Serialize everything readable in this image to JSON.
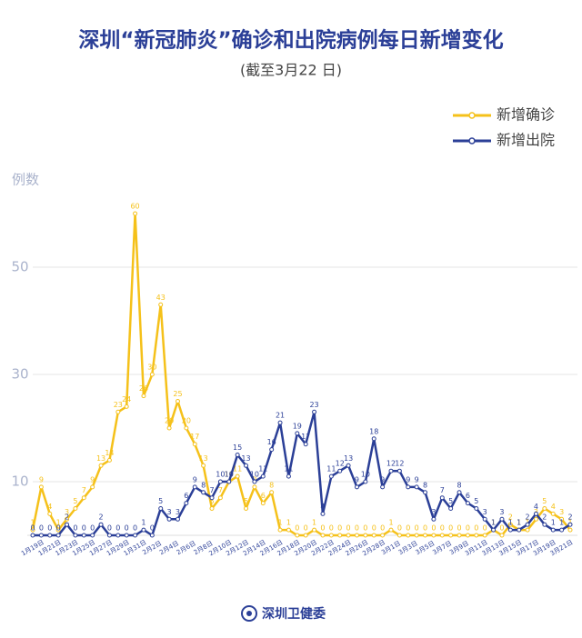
{
  "chart_data": {
    "type": "line",
    "title": "深圳“新冠肺炎”确诊和出院病例每日新增变化",
    "subtitle": "(截至3月22 日)",
    "y_label": "例数",
    "footer": "深圳卫健委",
    "categories": [
      "1月19日",
      null,
      "1月21日",
      null,
      "1月23日",
      null,
      "1月25日",
      null,
      "1月27日",
      null,
      "1月29日",
      null,
      "1月31日",
      null,
      "2月2日",
      null,
      "2月4日",
      null,
      "2月6日",
      null,
      "2月8日",
      null,
      "2月10日",
      null,
      "2月12日",
      null,
      "2月14日",
      null,
      "2月16日",
      null,
      "2月18日",
      null,
      "2月20日",
      null,
      "2月22日",
      null,
      "2月24日",
      null,
      "2月26日",
      null,
      "2月28日",
      null,
      "3月1日",
      null,
      "3月3日",
      null,
      "3月5日",
      null,
      "3月7日",
      null,
      "3月9日",
      null,
      "3月11日",
      null,
      "3月13日",
      null,
      "3月15日",
      null,
      "3月17日",
      null,
      "3月19日",
      null,
      "3月21日",
      null
    ],
    "series": [
      {
        "name": "新增确诊",
        "color": "#f5c11a",
        "values": [
          1,
          9,
          4,
          1,
          3,
          5,
          7,
          9,
          13,
          14,
          23,
          24,
          60,
          26,
          30,
          43,
          20,
          25,
          20,
          17,
          13,
          5,
          7,
          10,
          11,
          5,
          9,
          6,
          8,
          1,
          1,
          0,
          0,
          1,
          0,
          0,
          0,
          0,
          0,
          0,
          0,
          0,
          1,
          0,
          0,
          0,
          0,
          0,
          0,
          0,
          0,
          0,
          0,
          0,
          1,
          0,
          2,
          1,
          1,
          3,
          5,
          4,
          3,
          1
        ]
      },
      {
        "name": "新增出院",
        "color": "#2b3f97",
        "values": [
          0,
          0,
          0,
          0,
          2,
          0,
          0,
          0,
          2,
          0,
          0,
          0,
          0,
          1,
          0,
          5,
          3,
          3,
          6,
          9,
          8,
          7,
          10,
          10,
          15,
          13,
          10,
          11,
          16,
          21,
          11,
          19,
          17,
          23,
          4,
          11,
          12,
          13,
          9,
          10,
          18,
          9,
          12,
          12,
          9,
          9,
          8,
          3,
          7,
          5,
          8,
          6,
          5,
          3,
          1,
          3,
          1,
          1,
          2,
          4,
          2,
          1,
          1,
          2
        ]
      }
    ],
    "ylim": [
      0,
      60
    ],
    "yticks": [
      10,
      30,
      50
    ],
    "grid": true,
    "legend": "top-right"
  }
}
